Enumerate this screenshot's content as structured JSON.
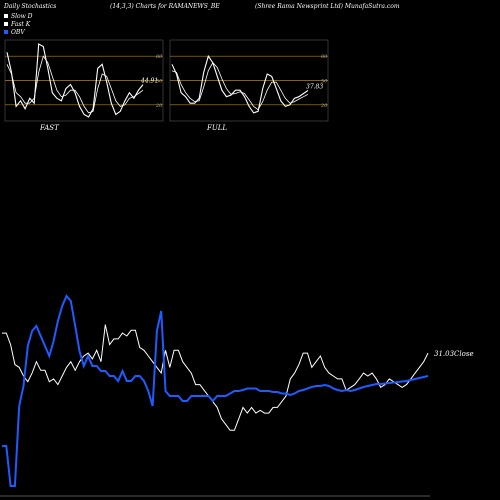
{
  "header": {
    "title_left": "Daily Stochastics",
    "title_mid": "(14,3,3) Charts for RAMANEWS_BE",
    "title_right": "(Shree  Rama  Newsprint Ltd) MunafaSutra.com"
  },
  "legend": [
    {
      "label": "Slow  D",
      "color": "#ffffff"
    },
    {
      "label": "Fast K",
      "color": "#ffffff"
    },
    {
      "label": "OBV",
      "color": "#1e5cff"
    }
  ],
  "colors": {
    "background": "#000000",
    "panel_line": "#ffffff",
    "obv": "#1e5cff",
    "guide_line": "#b8860b",
    "axis": "#555555"
  },
  "chart_data": [
    {
      "type": "line",
      "panel": "FAST",
      "title": "FAST",
      "ylim": [
        0,
        100
      ],
      "yticks": [
        20,
        50,
        80
      ],
      "guide_levels": [
        20,
        50,
        80
      ],
      "last_value_label": "44.91",
      "series": [
        {
          "values": [
            85,
            60,
            18,
            25,
            15,
            28,
            22,
            95,
            92,
            65,
            35,
            28,
            25,
            40,
            45,
            35,
            18,
            8,
            5,
            15,
            65,
            70,
            48,
            22,
            8,
            12,
            25,
            35,
            28,
            38,
            44.91
          ]
        },
        {
          "values": [
            70,
            58,
            35,
            30,
            22,
            22,
            28,
            60,
            80,
            72,
            55,
            38,
            30,
            32,
            38,
            38,
            30,
            18,
            10,
            12,
            40,
            58,
            55,
            40,
            25,
            18,
            20,
            28,
            30,
            34,
            38
          ]
        }
      ]
    },
    {
      "type": "line",
      "panel": "FULL",
      "title": "FULL",
      "ylim": [
        0,
        100
      ],
      "yticks": [
        20,
        50,
        80
      ],
      "guide_levels": [
        20,
        50,
        80
      ],
      "last_value_label": "37.83",
      "series": [
        {
          "values": [
            70,
            58,
            35,
            30,
            22,
            22,
            28,
            60,
            80,
            72,
            55,
            38,
            30,
            32,
            38,
            38,
            30,
            18,
            10,
            12,
            40,
            58,
            55,
            40,
            25,
            18,
            20,
            28,
            30,
            34,
            37.83
          ]
        },
        {
          "values": [
            62,
            60,
            45,
            35,
            28,
            24,
            25,
            42,
            62,
            72,
            66,
            52,
            40,
            33,
            34,
            36,
            34,
            26,
            18,
            14,
            24,
            38,
            48,
            48,
            38,
            28,
            22,
            24,
            27,
            30,
            33
          ]
        }
      ]
    },
    {
      "type": "line",
      "panel": "main",
      "last_value_label": "31.03",
      "close_label": "Close",
      "series": [
        {
          "name": "Close",
          "values": [
            38,
            38,
            34,
            27,
            26,
            23,
            21,
            24,
            28,
            25,
            25,
            21,
            22,
            20,
            23,
            26,
            28,
            25,
            28,
            30,
            31,
            29,
            32,
            28,
            41,
            34,
            36,
            36,
            38,
            37,
            39,
            39,
            33,
            32,
            30,
            28,
            26,
            24,
            32,
            26,
            32,
            32,
            28,
            26,
            24,
            20,
            20,
            18,
            16,
            14,
            12,
            8,
            6,
            4,
            4,
            8,
            12,
            10,
            12,
            10,
            11,
            10,
            10,
            12,
            12,
            14,
            16,
            22,
            24,
            27,
            31,
            31,
            26,
            28,
            30,
            26,
            24,
            23,
            22,
            22,
            18,
            19,
            20,
            22,
            24,
            23,
            24,
            22,
            19,
            20,
            22,
            21,
            20,
            19,
            20,
            22,
            24,
            26,
            28,
            31.03
          ]
        },
        {
          "name": "OBV",
          "values": [
            -260,
            -260,
            -340,
            -340,
            -180,
            -140,
            -60,
            -30,
            -20,
            -40,
            -60,
            -80,
            -50,
            -10,
            20,
            40,
            30,
            -20,
            -70,
            -100,
            -80,
            -100,
            -100,
            -110,
            -110,
            -120,
            -120,
            -130,
            -110,
            -130,
            -130,
            -120,
            -120,
            -130,
            -150,
            -180,
            -30,
            10,
            -150,
            -160,
            -160,
            -160,
            -170,
            -170,
            -160,
            -160,
            -160,
            -160,
            -160,
            -170,
            -160,
            -160,
            -160,
            -155,
            -150,
            -150,
            -148,
            -145,
            -145,
            -145,
            -150,
            -150,
            -150,
            -152,
            -152,
            -155,
            -155,
            -158,
            -155,
            -150,
            -148,
            -145,
            -142,
            -140,
            -140,
            -138,
            -140,
            -145,
            -148,
            -150,
            -148,
            -150,
            -148,
            -145,
            -142,
            -140,
            -138,
            -136,
            -136,
            -135,
            -134,
            -133,
            -132,
            -131,
            -130,
            -128,
            -126,
            -124,
            -122,
            -120
          ]
        }
      ]
    }
  ],
  "panel_labels": {
    "fast": "FAST",
    "full": "FULL"
  }
}
